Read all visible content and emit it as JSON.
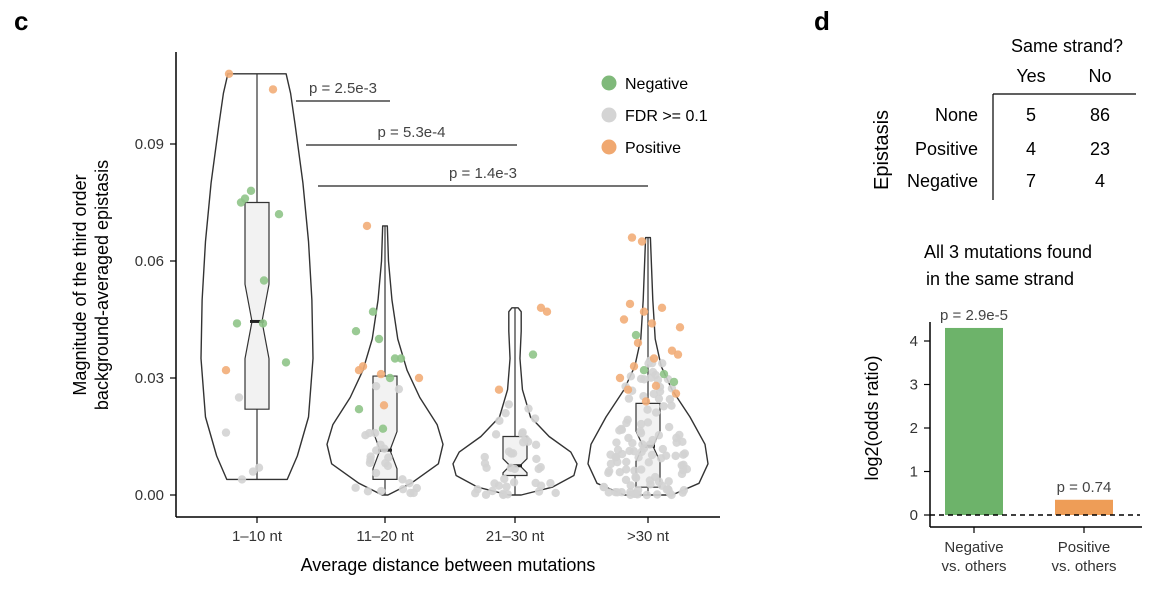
{
  "panel_c": {
    "label": "c",
    "chart_data": {
      "type": "violin",
      "xlabel": "Average distance between mutations",
      "ylabel_line1": "Magnitude of the third order",
      "ylabel_line2": "background-averaged epistasis",
      "ylim": [
        0,
        0.11
      ],
      "yticks": [
        "0.00",
        "0.03",
        "0.06",
        "0.09"
      ],
      "categories": [
        "1–10 nt",
        "11–20 nt",
        "21–30 nt",
        ">30 nt"
      ],
      "legend_position": "top-right",
      "legend": [
        {
          "name": "Negative",
          "color": "#7fb97a"
        },
        {
          "name": "FDR >= 0.1",
          "color": "#d4d4d4"
        },
        {
          "name": "Positive",
          "color": "#f0a870"
        }
      ],
      "groups": [
        {
          "category": "1–10 nt",
          "median": 0.0445,
          "q1": 0.022,
          "q3": 0.075,
          "max": 0.108,
          "min": 0.004
        },
        {
          "category": "11–20 nt",
          "median": 0.0115,
          "q1": 0.004,
          "q3": 0.0305,
          "max": 0.069,
          "min": 0.0
        },
        {
          "category": "21–30 nt",
          "median": 0.0075,
          "q1": 0.005,
          "q3": 0.015,
          "max": 0.048,
          "min": 0.0
        },
        {
          "category": ">30 nt",
          "median": 0.0125,
          "q1": 0.002,
          "q3": 0.0235,
          "max": 0.066,
          "min": 0.0
        }
      ],
      "comparisons": [
        {
          "label": "p = 2.5e-3",
          "from": 0,
          "to": 1
        },
        {
          "label": "p = 5.3e-4",
          "from": 0,
          "to": 2
        },
        {
          "label": "p = 1.4e-3",
          "from": 0,
          "to": 3
        }
      ]
    }
  },
  "panel_d": {
    "label": "d",
    "table": {
      "col_title": "Same strand?",
      "columns": [
        "Yes",
        "No"
      ],
      "row_title": "Epistasis",
      "rows": [
        {
          "label": "None",
          "values": [
            "5",
            "86"
          ]
        },
        {
          "label": "Positive",
          "values": [
            "4",
            "23"
          ]
        },
        {
          "label": "Negative",
          "values": [
            "7",
            "4"
          ]
        }
      ]
    },
    "chart_data": {
      "type": "bar",
      "title_line1": "All 3 mutations found",
      "title_line2": "in the same strand",
      "ylabel": "log2(odds ratio)",
      "ylim": [
        -0.3,
        4.5
      ],
      "yticks": [
        "0",
        "1",
        "2",
        "3",
        "4"
      ],
      "categories": [
        {
          "line1": "Negative",
          "line2": "vs. others"
        },
        {
          "line1": "Positive",
          "line2": "vs. others"
        }
      ],
      "values": [
        4.3,
        0.35
      ],
      "colors": [
        "#6db36a",
        "#ee9d57"
      ],
      "pvalues": [
        "p = 2.9e-5",
        "p = 0.74"
      ]
    }
  }
}
